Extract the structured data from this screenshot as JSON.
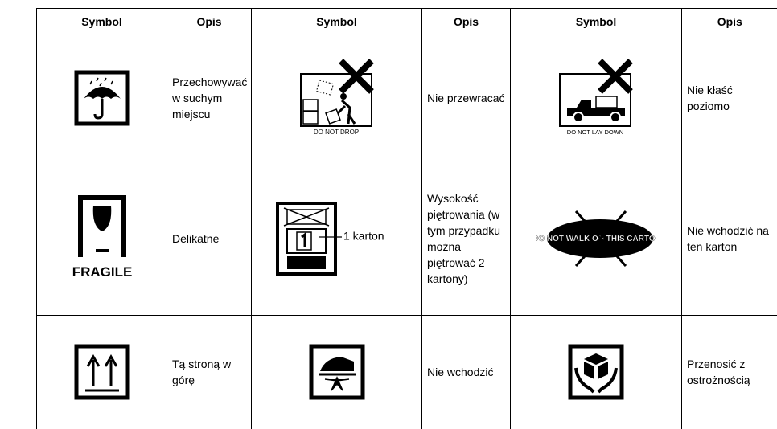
{
  "table": {
    "header": [
      "Symbol",
      "Opis",
      "Symbol",
      "Opis",
      "Symbol",
      "Opis"
    ],
    "rows": [
      [
        "Przechowywać w suchym miejscu",
        "Nie przewracać",
        "Nie kłaść poziomo"
      ],
      [
        "Delikatne",
        "Wysokość piętrowania (w tym przypadku można piętrować 2 kartony)",
        "Nie wchodzić na ten karton"
      ],
      [
        "Tą stroną w górę",
        "Nie wchodzić",
        "Przenosić z ostrożnością"
      ]
    ],
    "symbol_texts": [
      "DO NOT DROP",
      "DO NOT LAY DOWN",
      "FRAGILE",
      "1 karton",
      "DO NOT WALK ON THIS CARTON"
    ]
  }
}
